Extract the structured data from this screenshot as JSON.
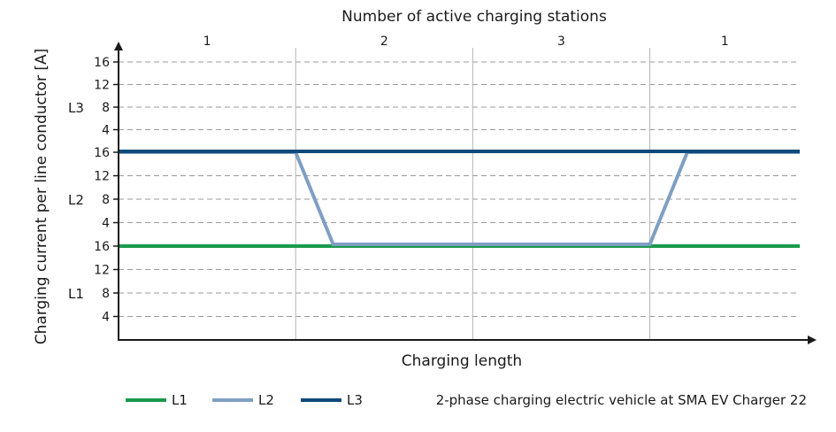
{
  "chart_data": {
    "type": "line",
    "title": "Number of active charging stations",
    "xlabel": "Charging length",
    "ylabel": "Charging current per line conductor [A]",
    "note": "2-phase charging electric vehicle at SMA EV Charger 22",
    "x_range": [
      0,
      100
    ],
    "x_dividers": [
      26,
      52,
      78
    ],
    "stations": [
      {
        "label": "1",
        "x_center": 13
      },
      {
        "label": "2",
        "x_center": 39
      },
      {
        "label": "3",
        "x_center": 65
      },
      {
        "label": "1",
        "x_center": 89
      }
    ],
    "bands": [
      {
        "label": "L1",
        "ticks": [
          "4",
          "8",
          "12",
          "16"
        ],
        "range": [
          0,
          16
        ]
      },
      {
        "label": "L2",
        "ticks": [
          "4",
          "8",
          "12",
          "16"
        ],
        "range": [
          0,
          16
        ]
      },
      {
        "label": "L3",
        "ticks": [
          "4",
          "8",
          "12",
          "16"
        ],
        "range": [
          0,
          16
        ]
      }
    ],
    "series": [
      {
        "name": "L1",
        "color": "#1a9a4b",
        "band": "L1",
        "points": [
          [
            0,
            16
          ],
          [
            100,
            16
          ]
        ]
      },
      {
        "name": "L2",
        "color": "#7f9fc4",
        "band": "L2",
        "points": [
          [
            0,
            16
          ],
          [
            26,
            16
          ],
          [
            31.5,
            0
          ],
          [
            78,
            0
          ],
          [
            83.5,
            16
          ],
          [
            100,
            16
          ]
        ]
      },
      {
        "name": "L3",
        "color": "#0d4a7a",
        "band": "L3",
        "points": [
          [
            0,
            0
          ],
          [
            100,
            0
          ]
        ]
      }
    ]
  }
}
